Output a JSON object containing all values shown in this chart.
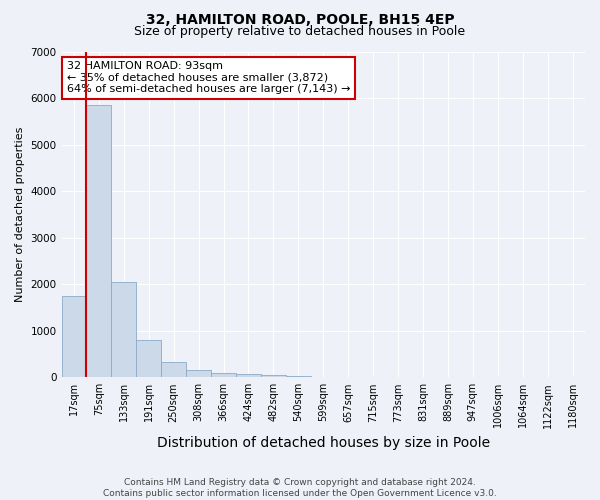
{
  "title1": "32, HAMILTON ROAD, POOLE, BH15 4EP",
  "title2": "Size of property relative to detached houses in Poole",
  "xlabel": "Distribution of detached houses by size in Poole",
  "ylabel": "Number of detached properties",
  "footer": "Contains HM Land Registry data © Crown copyright and database right 2024.\nContains public sector information licensed under the Open Government Licence v3.0.",
  "bins": [
    "17sqm",
    "75sqm",
    "133sqm",
    "191sqm",
    "250sqm",
    "308sqm",
    "366sqm",
    "424sqm",
    "482sqm",
    "540sqm",
    "599sqm",
    "657sqm",
    "715sqm",
    "773sqm",
    "831sqm",
    "889sqm",
    "947sqm",
    "1006sqm",
    "1064sqm",
    "1122sqm",
    "1180sqm"
  ],
  "values": [
    1750,
    5850,
    2050,
    800,
    320,
    150,
    100,
    80,
    50,
    30,
    15,
    8,
    4,
    2,
    1,
    0,
    0,
    0,
    0,
    0,
    0
  ],
  "bar_color": "#ccd9e8",
  "bar_edge_color": "#8aaac8",
  "red_line_bin_index": 1,
  "red_line_color": "#cc0000",
  "annotation_text": "32 HAMILTON ROAD: 93sqm\n← 35% of detached houses are smaller (3,872)\n64% of semi-detached houses are larger (7,143) →",
  "annotation_box_color": "#ffffff",
  "annotation_border_color": "#cc0000",
  "ylim": [
    0,
    7000
  ],
  "yticks": [
    0,
    1000,
    2000,
    3000,
    4000,
    5000,
    6000,
    7000
  ],
  "background_color": "#eef2f8",
  "grid_color": "#ffffff",
  "title1_fontsize": 10,
  "title2_fontsize": 9,
  "xlabel_fontsize": 10,
  "ylabel_fontsize": 8,
  "tick_fontsize": 7,
  "annotation_fontsize": 8
}
